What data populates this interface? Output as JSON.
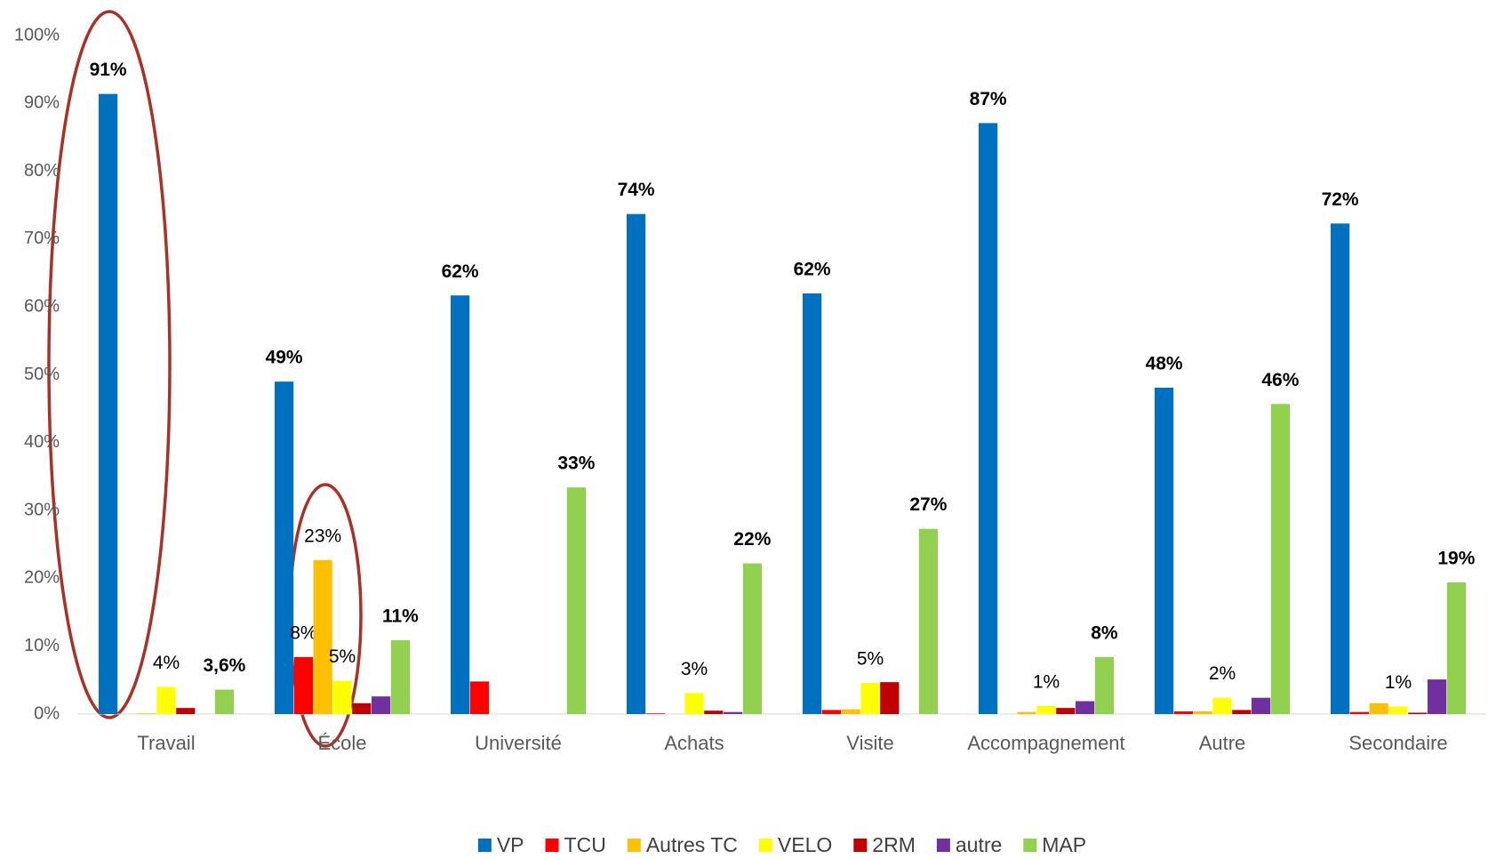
{
  "chart_data": {
    "type": "bar",
    "categories": [
      "Travail",
      "École",
      "Université",
      "Achats",
      "Visite",
      "Accompagnement",
      "Autre",
      "Secondaire"
    ],
    "series": [
      {
        "name": "VP",
        "color": "#0070c0",
        "label_bold": true,
        "values": [
          91.4,
          49,
          61.7,
          73.7,
          62,
          87.1,
          48.1,
          72.3
        ],
        "value_labels": [
          "91%",
          "49%",
          "62%",
          "74%",
          "62%",
          "87%",
          "48%",
          "72%"
        ]
      },
      {
        "name": "TCU",
        "color": "#ff0000",
        "label_bold": false,
        "values": [
          0,
          8.4,
          4.8,
          0.1,
          0.6,
          0,
          0.4,
          0.3
        ],
        "value_labels": [
          null,
          "8%",
          null,
          null,
          null,
          null,
          null,
          null
        ]
      },
      {
        "name": "Autres TC",
        "color": "#ffc000",
        "label_bold": false,
        "values": [
          0.1,
          22.7,
          0,
          0,
          0.7,
          0.3,
          0.4,
          1.6
        ],
        "value_labels": [
          null,
          "23%",
          null,
          null,
          null,
          null,
          null,
          null
        ]
      },
      {
        "name": "VELO",
        "color": "#ffff00",
        "label_bold": false,
        "values": [
          4,
          4.9,
          0,
          3.1,
          4.6,
          1.2,
          2.4,
          1.1
        ],
        "value_labels": [
          "4%",
          "5%",
          null,
          "3%",
          "5%",
          "1%",
          "2%",
          "1%"
        ]
      },
      {
        "name": "2RM",
        "color": "#c00000",
        "values": [
          0.9,
          1.6,
          0,
          0.5,
          4.7,
          0.9,
          0.6,
          0.2
        ]
      },
      {
        "name": "autre",
        "color": "#7030a0",
        "values": [
          0,
          2.6,
          0,
          0.3,
          0,
          1.9,
          2.4,
          5.1
        ]
      },
      {
        "name": "MAP",
        "color": "#92d050",
        "label_bold": true,
        "values": [
          3.6,
          10.9,
          33.4,
          22.2,
          27.3,
          8.4,
          45.7,
          19.4
        ],
        "value_labels": [
          "3,6%",
          "11%",
          "33%",
          "22%",
          "27%",
          "8%",
          "46%",
          "19%"
        ]
      }
    ],
    "ylim": [
      0,
      100
    ],
    "yticks": [
      {
        "value": 0,
        "label": "0%"
      },
      {
        "value": 10,
        "label": "10%"
      },
      {
        "value": 20,
        "label": "20%"
      },
      {
        "value": 30,
        "label": "30%"
      },
      {
        "value": 40,
        "label": "40%"
      },
      {
        "value": 50,
        "label": "50%"
      },
      {
        "value": 60,
        "label": "60%"
      },
      {
        "value": 70,
        "label": "70%"
      },
      {
        "value": 80,
        "label": "80%"
      },
      {
        "value": 90,
        "label": "90%"
      },
      {
        "value": 100,
        "label": "100%"
      }
    ],
    "grid": false,
    "legend": "bottom"
  }
}
